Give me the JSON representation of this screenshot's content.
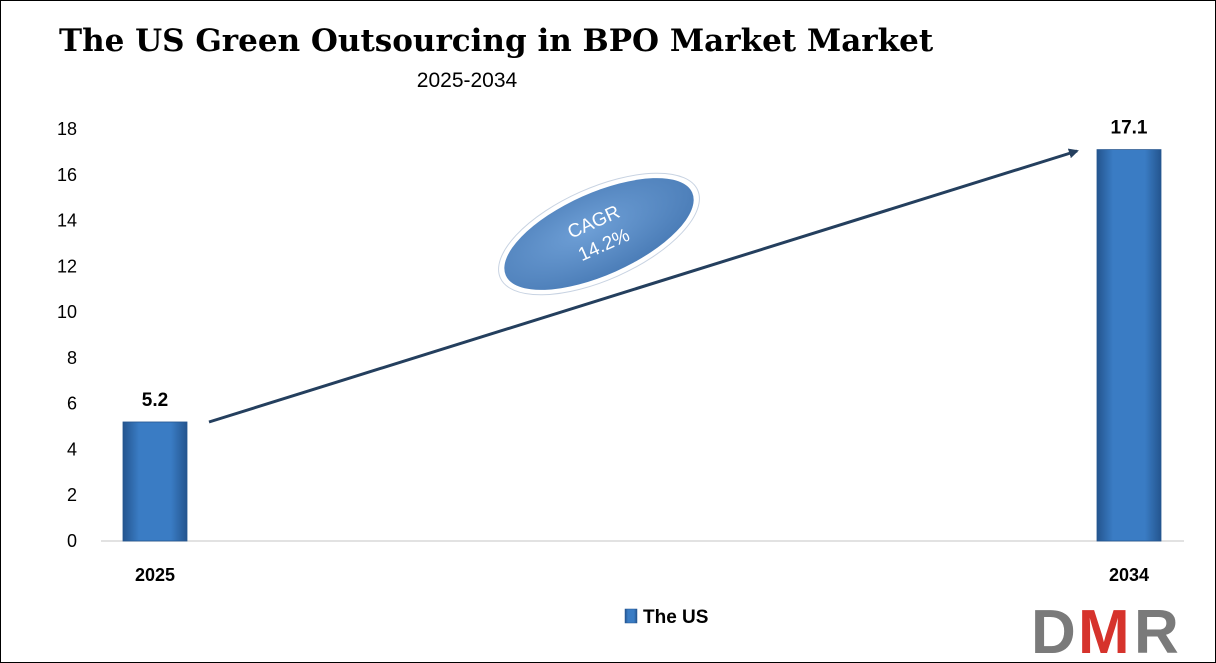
{
  "chart_data": {
    "type": "bar",
    "title": "The US Green Outsourcing in BPO Market Market",
    "subtitle": "2025-2034",
    "categories": [
      "2025",
      "2034"
    ],
    "series": [
      {
        "name": "The US",
        "values": [
          5.2,
          17.1
        ],
        "labels": [
          "5.2",
          "17.1"
        ]
      }
    ],
    "yticks": [
      "0",
      "2",
      "4",
      "6",
      "8",
      "10",
      "12",
      "14",
      "16",
      "18"
    ],
    "ylim": [
      0,
      18
    ],
    "grid": false,
    "legend_position": "bottom",
    "annotation": {
      "line1": "CAGR",
      "line2": "14.2%"
    }
  },
  "colors": {
    "bar": "#3a7cc4",
    "bar_dark": "#24558f",
    "arrow": "#243f5e",
    "ellipse": "#5b8fc9",
    "logo_gray": "#7a7a7a",
    "logo_red": "#d6332c"
  },
  "logo": {
    "part1": "D",
    "part2": "M",
    "part3": "R"
  }
}
